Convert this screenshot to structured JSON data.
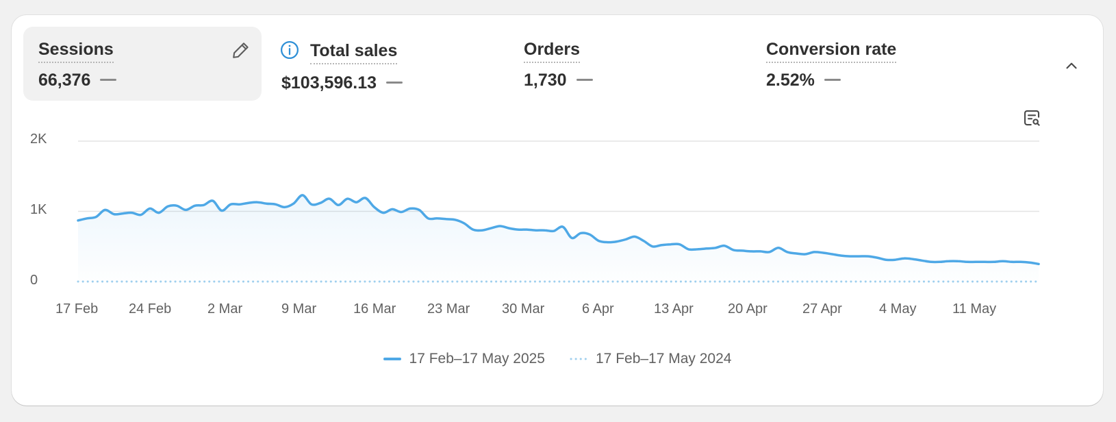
{
  "metrics": [
    {
      "label": "Sessions",
      "value": "66,376",
      "active": true
    },
    {
      "label": "Total sales",
      "value": "$103,596.13",
      "active": false
    },
    {
      "label": "Orders",
      "value": "1,730",
      "active": false
    },
    {
      "label": "Conversion rate",
      "value": "2.52%",
      "active": false
    }
  ],
  "icons": {
    "edit": "pencil-icon",
    "info": "info-icon",
    "collapse": "chevron-up-icon",
    "analyze": "search-report-icon"
  },
  "colors": {
    "accent": "#4ea8e6",
    "comparison": "#9fcfee",
    "grid": "#e3e3e3"
  },
  "chart_data": {
    "type": "line",
    "y_ticks": [
      "2K",
      "1K",
      "0"
    ],
    "ylim": [
      0,
      2000
    ],
    "x_ticks": [
      "17 Feb",
      "24 Feb",
      "2 Mar",
      "9 Mar",
      "16 Mar",
      "23 Mar",
      "30 Mar",
      "6 Apr",
      "13 Apr",
      "20 Apr",
      "27 Apr",
      "4 May",
      "11 May"
    ],
    "grid": true,
    "legend_position": "bottom",
    "series": [
      {
        "name": "17 Feb–17 May 2025",
        "style": "solid",
        "values": [
          870,
          900,
          920,
          1020,
          960,
          970,
          980,
          950,
          1040,
          980,
          1070,
          1080,
          1020,
          1080,
          1090,
          1150,
          1010,
          1100,
          1100,
          1120,
          1130,
          1110,
          1100,
          1060,
          1110,
          1230,
          1100,
          1120,
          1180,
          1090,
          1180,
          1130,
          1190,
          1060,
          980,
          1030,
          990,
          1040,
          1020,
          900,
          900,
          890,
          880,
          830,
          740,
          730,
          760,
          790,
          760,
          740,
          740,
          730,
          730,
          720,
          780,
          620,
          690,
          670,
          580,
          560,
          570,
          600,
          640,
          580,
          500,
          520,
          530,
          530,
          460,
          460,
          470,
          480,
          510,
          450,
          440,
          430,
          430,
          420,
          480,
          420,
          400,
          390,
          420,
          410,
          390,
          370,
          360,
          360,
          360,
          340,
          310,
          310,
          330,
          320,
          300,
          280,
          280,
          290,
          290,
          280,
          280,
          280,
          280,
          290,
          280,
          280,
          270,
          250
        ]
      },
      {
        "name": "17 Feb–17 May 2024",
        "style": "dotted",
        "values": [
          0,
          0,
          0,
          0,
          0,
          0,
          0,
          0,
          0,
          0,
          0,
          0,
          0,
          0,
          0,
          0,
          0,
          0,
          0,
          0,
          0,
          0,
          0,
          0,
          0,
          0,
          0,
          0,
          0,
          0,
          0,
          0,
          0,
          0,
          0,
          0,
          0,
          0,
          0,
          0,
          0,
          0,
          0,
          0,
          0,
          0,
          0,
          0,
          0,
          0,
          0,
          0,
          0,
          0,
          0,
          0,
          0,
          0,
          0,
          0,
          0,
          0,
          0,
          0,
          0,
          0,
          0,
          0,
          0,
          0,
          0,
          0,
          0,
          0,
          0,
          0,
          0,
          0,
          0,
          0,
          0,
          0,
          0,
          0,
          0,
          0,
          0,
          0,
          0,
          0,
          0,
          0,
          0,
          0,
          0,
          0,
          0,
          0,
          0,
          0,
          0,
          0,
          0,
          0,
          0,
          0,
          0,
          0,
          0,
          0
        ]
      }
    ]
  }
}
